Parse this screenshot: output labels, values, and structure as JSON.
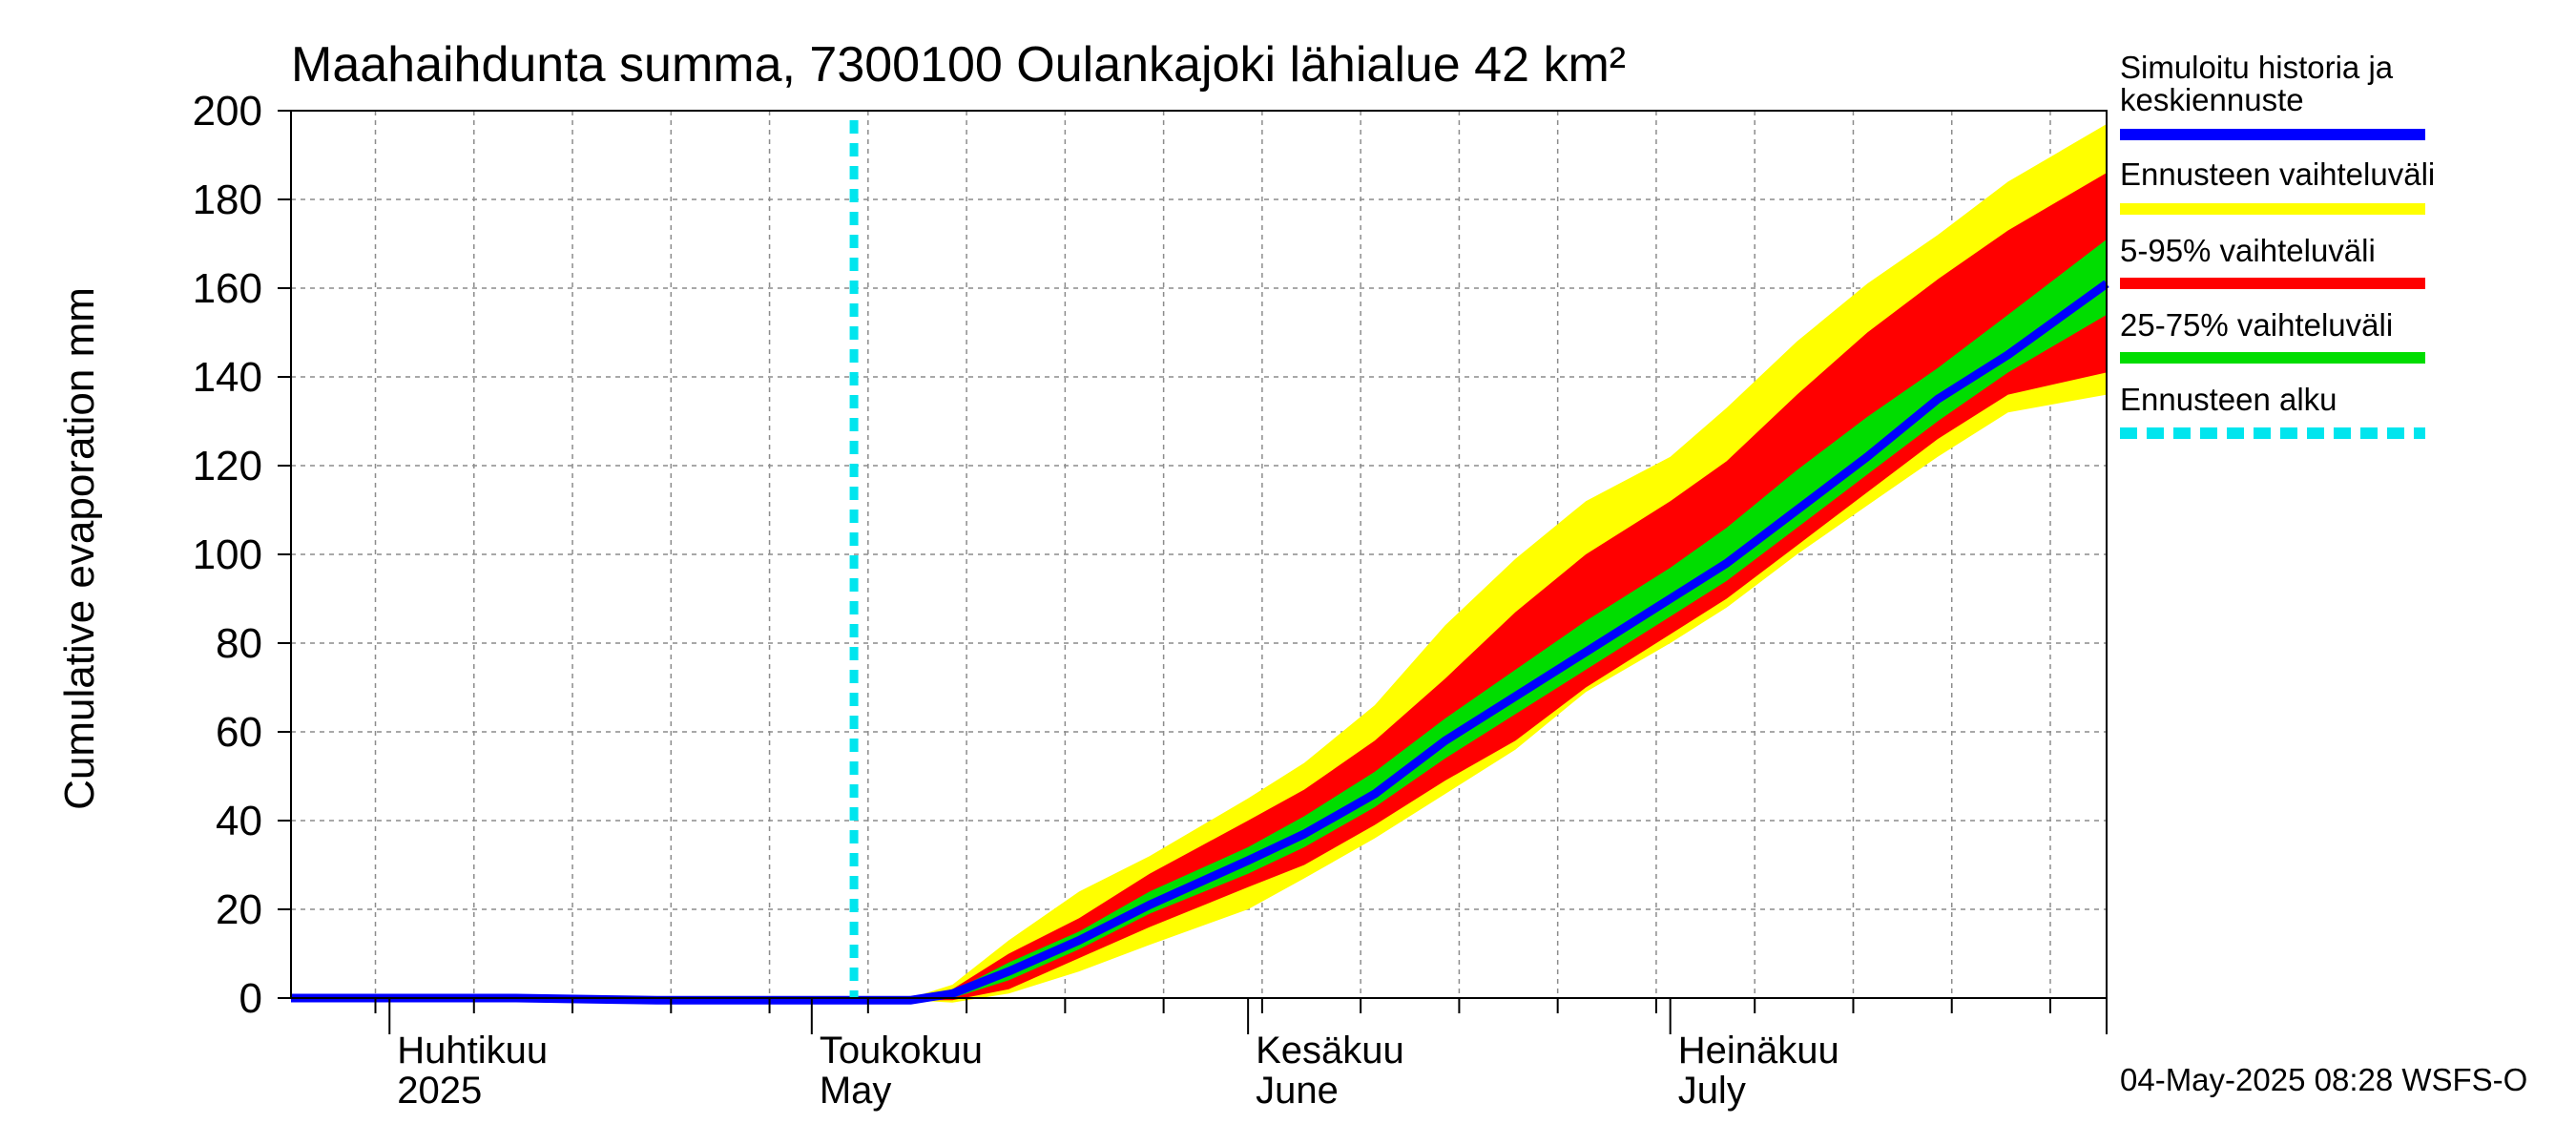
{
  "chart_data": {
    "type": "area",
    "title": "Maahaihdunta summa, 7300100 Oulankajoki lähialue 42 km²",
    "ylabel": "Cumulative evaporation   mm",
    "xlabel": "",
    "ylim": [
      0,
      200
    ],
    "yticks": [
      "0",
      "20",
      "40",
      "60",
      "80",
      "100",
      "120",
      "140",
      "160",
      "180",
      "200"
    ],
    "xlim": [
      "2025-03-25",
      "2025-08-01"
    ],
    "grid": true,
    "legend_position": "right",
    "month_labels": [
      {
        "date": "2025-04-01",
        "fi": "Huhtikuu",
        "en": "2025"
      },
      {
        "date": "2025-05-01",
        "fi": "Toukokuu",
        "en": "May"
      },
      {
        "date": "2025-06-01",
        "fi": "Kesäkuu",
        "en": "June"
      },
      {
        "date": "2025-07-01",
        "fi": "Heinäkuu",
        "en": "July"
      }
    ],
    "forecast_start": "2025-05-04",
    "x": [
      "2025-03-25",
      "2025-04-01",
      "2025-04-10",
      "2025-04-20",
      "2025-05-01",
      "2025-05-04",
      "2025-05-08",
      "2025-05-11",
      "2025-05-15",
      "2025-05-20",
      "2025-05-25",
      "2025-06-01",
      "2025-06-05",
      "2025-06-10",
      "2025-06-15",
      "2025-06-20",
      "2025-06-25",
      "2025-07-01",
      "2025-07-05",
      "2025-07-10",
      "2025-07-15",
      "2025-07-20",
      "2025-07-25",
      "2025-08-01"
    ],
    "series": [
      {
        "name": "Simuloitu historia ja keskiennuste",
        "color": "#0000ff",
        "values": [
          0,
          0,
          0,
          -0.5,
          -0.5,
          -0.5,
          -0.5,
          1,
          6,
          13,
          21,
          31,
          37,
          46,
          58,
          68,
          78,
          90,
          98,
          110,
          122,
          135,
          145,
          161
        ]
      },
      {
        "name": "Ennusteen vaihteluväli",
        "color": "#ffff00",
        "lower": [
          null,
          null,
          null,
          null,
          null,
          -0.5,
          -0.5,
          -1,
          1,
          6,
          12,
          20,
          27,
          36,
          46,
          56,
          69,
          80,
          88,
          100,
          111,
          122,
          132,
          136
        ],
        "upper": [
          null,
          null,
          null,
          null,
          null,
          -0.5,
          0,
          3,
          13,
          24,
          32,
          45,
          53,
          66,
          84,
          99,
          112,
          122,
          133,
          148,
          161,
          172,
          184,
          197
        ]
      },
      {
        "name": "5-95% vaihteluväli",
        "color": "#ff0000",
        "lower": [
          null,
          null,
          null,
          null,
          null,
          -0.5,
          -0.5,
          -0.5,
          2,
          9,
          16,
          25,
          30,
          39,
          49,
          58,
          70,
          82,
          90,
          102,
          114,
          126,
          136,
          141
        ],
        "upper": [
          null,
          null,
          null,
          null,
          null,
          -0.5,
          0,
          2,
          10,
          18,
          28,
          40,
          47,
          58,
          72,
          87,
          100,
          112,
          121,
          136,
          150,
          162,
          173,
          186
        ]
      },
      {
        "name": "25-75% vaihteluväli",
        "color": "#00dd00",
        "lower": [
          null,
          null,
          null,
          null,
          null,
          -0.5,
          -0.5,
          0,
          4,
          11,
          19,
          28,
          34,
          43,
          54,
          64,
          74,
          86,
          94,
          106,
          118,
          130,
          141,
          154
        ],
        "upper": [
          null,
          null,
          null,
          null,
          null,
          -0.5,
          -0.3,
          1.5,
          8,
          15,
          24,
          34,
          41,
          51,
          63,
          74,
          85,
          97,
          106,
          119,
          131,
          142,
          154,
          171
        ]
      },
      {
        "name": "Ennusteen alku",
        "color": "#00e5ee"
      }
    ]
  },
  "footer": "04-May-2025 08:28 WSFS-O"
}
